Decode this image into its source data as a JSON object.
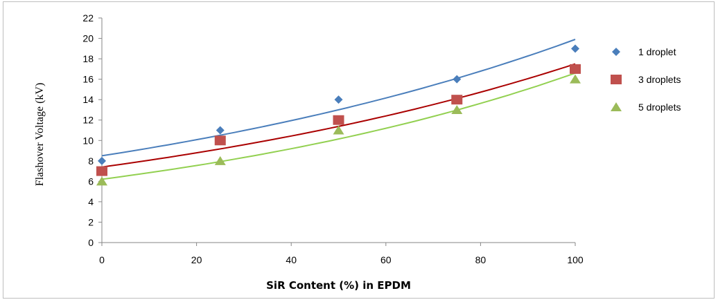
{
  "chart_data": {
    "type": "scatter",
    "title": "",
    "xlabel": "SiR Content (%) in EPDM",
    "ylabel": "Flashover Voltage (kV)",
    "xlim": [
      0,
      100
    ],
    "ylim": [
      0,
      22
    ],
    "x_ticks": [
      0,
      20,
      40,
      60,
      80,
      100
    ],
    "y_ticks": [
      0,
      2,
      4,
      6,
      8,
      10,
      12,
      14,
      16,
      18,
      20,
      22
    ],
    "grid": false,
    "legend_position": "right",
    "trendline": "exponential",
    "series": [
      {
        "name": "1 droplet",
        "marker": "diamond",
        "color": "#4a7ebb",
        "line_color": "#4a7ebb",
        "x": [
          0,
          25,
          50,
          75,
          100
        ],
        "y": [
          8,
          11,
          14,
          16,
          19
        ],
        "fit_x": [
          0,
          100
        ],
        "fit_y": [
          8.5,
          19.9
        ]
      },
      {
        "name": "3 droplets",
        "marker": "square",
        "color": "#c0504d",
        "line_color": "#aa0000",
        "x": [
          0,
          25,
          50,
          75,
          100
        ],
        "y": [
          7,
          10,
          12,
          14,
          17
        ],
        "fit_x": [
          0,
          100
        ],
        "fit_y": [
          7.4,
          17.5
        ]
      },
      {
        "name": "5 droplets",
        "marker": "triangle",
        "color": "#9bbb59",
        "line_color": "#92d050",
        "x": [
          0,
          25,
          50,
          75,
          100
        ],
        "y": [
          6,
          8,
          11,
          13,
          16
        ],
        "fit_x": [
          0,
          100
        ],
        "fit_y": [
          6.2,
          16.6
        ]
      }
    ]
  }
}
